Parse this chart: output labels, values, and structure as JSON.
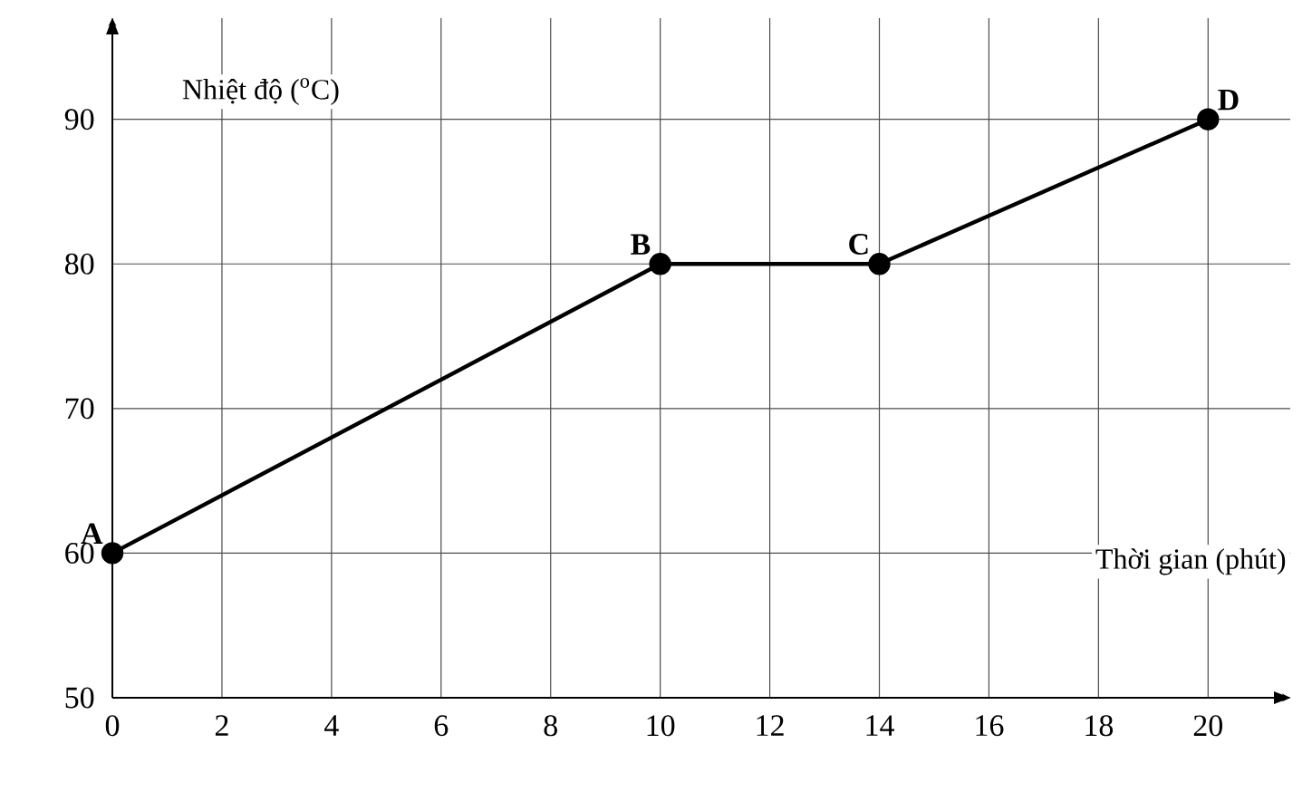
{
  "chart_data": {
    "type": "line",
    "xlabel": "Thời gian (phút)",
    "ylabel": "Nhiệt độ ($^{o}$C)",
    "x": [
      0,
      10,
      14,
      20
    ],
    "series": [
      {
        "color": "#000000",
        "values": [
          60,
          80,
          80,
          90
        ]
      }
    ],
    "annotations": [
      {
        "text": "A",
        "x": 0,
        "y": 60
      },
      {
        "text": "B",
        "x": 10,
        "y": 80
      },
      {
        "text": "C",
        "x": 14,
        "y": 80
      },
      {
        "text": "D",
        "x": 20,
        "y": 90
      }
    ],
    "xlim": [
      0,
      21.5
    ],
    "ylim": [
      50,
      97
    ],
    "xticks": [
      0,
      2,
      4,
      6,
      8,
      10,
      12,
      14,
      16,
      18,
      20
    ],
    "yticks": [
      50,
      60,
      70,
      80,
      90
    ],
    "grid": true,
    "marker": "circle",
    "line_style": "solid"
  }
}
